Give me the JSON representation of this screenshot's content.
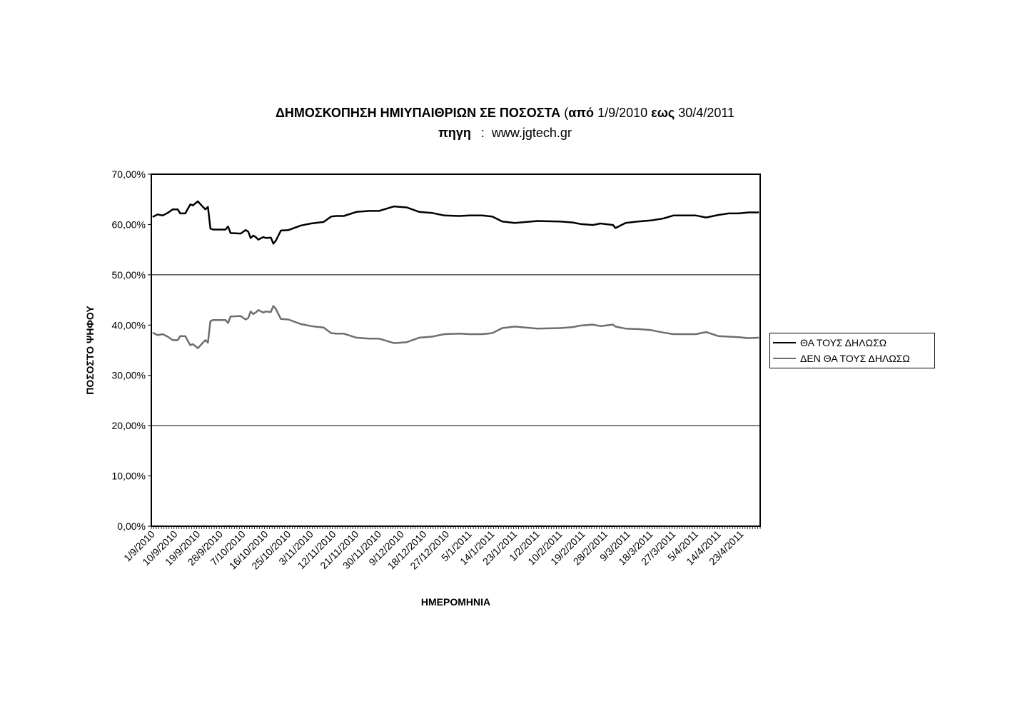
{
  "chart_data": {
    "type": "line",
    "title_bold": "ΔΗΜΟΣΚΟΠΗΣΗ ΗΜΙΥΠΑΙΘΡΙΩΝ ΣΕ ΠΟΣΟΣΤΑ",
    "title_paren_open": "(",
    "title_from_word": "από",
    "title_from_date": "1/9/2010",
    "title_to_word": "εως",
    "title_to_date": "30/4/2011",
    "subtitle_label": "πηγη",
    "subtitle_sep": ":",
    "subtitle_value": "www.jgtech.gr",
    "xlabel": "ΗΜΕΡΟΜΗΝΙΑ",
    "ylabel": "ΠΟΣΟΣΤΟ ΨΗΦΟΥ",
    "ylim": [
      0,
      70
    ],
    "y_ticks": [
      "0,00%",
      "10,00%",
      "20,00%",
      "30,00%",
      "40,00%",
      "50,00%",
      "60,00%",
      "70,00%"
    ],
    "x_tick_labels": [
      "1/9/2010",
      "10/9/2010",
      "19/9/2010",
      "28/9/2010",
      "7/10/2010",
      "16/10/2010",
      "25/10/2010",
      "3/11/2010",
      "12/11/2010",
      "21/11/2010",
      "30/11/2010",
      "9/12/2010",
      "18/12/2010",
      "27/12/2010",
      "5/1/2011",
      "14/1/2011",
      "23/1/2011",
      "1/2/2011",
      "10/2/2011",
      "19/2/2011",
      "28/2/2011",
      "9/3/2011",
      "18/3/2011",
      "27/3/2011",
      "5/4/2011",
      "14/4/2011",
      "23/4/2011"
    ],
    "x_range_dates": [
      "1/9/2010",
      "30/4/2011"
    ],
    "gridlines_at": [
      20,
      50
    ],
    "legend_position": "right",
    "series": [
      {
        "name": "ΘΑ ΤΟΥΣ ΔΗΛΩΣΩ",
        "color": "#000000",
        "points": [
          [
            "1/9/2010",
            61.5
          ],
          [
            "3/9/2010",
            62.0
          ],
          [
            "5/9/2010",
            61.8
          ],
          [
            "7/9/2010",
            62.3
          ],
          [
            "9/9/2010",
            63.0
          ],
          [
            "11/9/2010",
            63.0
          ],
          [
            "12/9/2010",
            62.2
          ],
          [
            "14/9/2010",
            62.2
          ],
          [
            "16/9/2010",
            64.0
          ],
          [
            "17/9/2010",
            63.8
          ],
          [
            "19/9/2010",
            64.6
          ],
          [
            "21/9/2010",
            63.5
          ],
          [
            "22/9/2010",
            63.0
          ],
          [
            "23/9/2010",
            63.5
          ],
          [
            "24/9/2010",
            59.2
          ],
          [
            "25/9/2010",
            59.0
          ],
          [
            "30/9/2010",
            59.0
          ],
          [
            "1/10/2010",
            59.6
          ],
          [
            "2/10/2010",
            58.3
          ],
          [
            "6/10/2010",
            58.2
          ],
          [
            "8/10/2010",
            58.9
          ],
          [
            "9/10/2010",
            58.6
          ],
          [
            "10/10/2010",
            57.3
          ],
          [
            "11/10/2010",
            57.8
          ],
          [
            "12/10/2010",
            57.5
          ],
          [
            "13/10/2010",
            57.0
          ],
          [
            "15/10/2010",
            57.5
          ],
          [
            "16/10/2010",
            57.3
          ],
          [
            "18/10/2010",
            57.4
          ],
          [
            "19/10/2010",
            56.2
          ],
          [
            "20/10/2010",
            56.8
          ],
          [
            "22/10/2010",
            58.8
          ],
          [
            "25/10/2010",
            58.9
          ],
          [
            "30/10/2010",
            59.8
          ],
          [
            "3/11/2010",
            60.2
          ],
          [
            "8/11/2010",
            60.5
          ],
          [
            "11/11/2010",
            61.6
          ],
          [
            "13/11/2010",
            61.7
          ],
          [
            "16/11/2010",
            61.7
          ],
          [
            "21/11/2010",
            62.5
          ],
          [
            "26/11/2010",
            62.7
          ],
          [
            "30/11/2010",
            62.7
          ],
          [
            "6/12/2010",
            63.6
          ],
          [
            "11/12/2010",
            63.4
          ],
          [
            "16/12/2010",
            62.5
          ],
          [
            "21/12/2010",
            62.3
          ],
          [
            "26/12/2010",
            61.8
          ],
          [
            "1/1/2011",
            61.7
          ],
          [
            "5/1/2011",
            61.8
          ],
          [
            "8/1/2011",
            61.8
          ],
          [
            "10/1/2011",
            61.8
          ],
          [
            "14/1/2011",
            61.6
          ],
          [
            "18/1/2011",
            60.6
          ],
          [
            "23/1/2011",
            60.3
          ],
          [
            "1/2/2011",
            60.7
          ],
          [
            "10/2/2011",
            60.6
          ],
          [
            "15/2/2011",
            60.4
          ],
          [
            "18/2/2011",
            60.1
          ],
          [
            "23/2/2011",
            59.9
          ],
          [
            "26/2/2011",
            60.2
          ],
          [
            "3/3/2011",
            59.9
          ],
          [
            "4/3/2011",
            59.3
          ],
          [
            "8/3/2011",
            60.3
          ],
          [
            "13/3/2011",
            60.6
          ],
          [
            "18/3/2011",
            60.8
          ],
          [
            "23/3/2011",
            61.2
          ],
          [
            "27/3/2011",
            61.8
          ],
          [
            "5/4/2011",
            61.8
          ],
          [
            "9/4/2011",
            61.4
          ],
          [
            "14/4/2011",
            61.9
          ],
          [
            "18/4/2011",
            62.2
          ],
          [
            "22/4/2011",
            62.2
          ],
          [
            "26/4/2011",
            62.4
          ],
          [
            "30/4/2011",
            62.4
          ]
        ]
      },
      {
        "name": "ΔΕΝ ΘΑ ΤΟΥΣ ΔΗΛΩΣΩ",
        "color": "#6e6e6e",
        "points": [
          [
            "1/9/2010",
            38.5
          ],
          [
            "3/9/2010",
            38.0
          ],
          [
            "5/9/2010",
            38.2
          ],
          [
            "7/9/2010",
            37.7
          ],
          [
            "9/9/2010",
            37.0
          ],
          [
            "11/9/2010",
            37.0
          ],
          [
            "12/9/2010",
            37.8
          ],
          [
            "14/9/2010",
            37.8
          ],
          [
            "16/9/2010",
            36.0
          ],
          [
            "17/9/2010",
            36.2
          ],
          [
            "19/9/2010",
            35.4
          ],
          [
            "21/9/2010",
            36.5
          ],
          [
            "22/9/2010",
            37.0
          ],
          [
            "23/9/2010",
            36.5
          ],
          [
            "24/9/2010",
            40.8
          ],
          [
            "25/9/2010",
            41.0
          ],
          [
            "30/9/2010",
            41.0
          ],
          [
            "1/10/2010",
            40.4
          ],
          [
            "2/10/2010",
            41.7
          ],
          [
            "6/10/2010",
            41.8
          ],
          [
            "8/10/2010",
            41.1
          ],
          [
            "9/10/2010",
            41.4
          ],
          [
            "10/10/2010",
            42.7
          ],
          [
            "11/10/2010",
            42.2
          ],
          [
            "12/10/2010",
            42.5
          ],
          [
            "13/10/2010",
            43.0
          ],
          [
            "15/10/2010",
            42.5
          ],
          [
            "16/10/2010",
            42.7
          ],
          [
            "18/10/2010",
            42.6
          ],
          [
            "19/10/2010",
            43.8
          ],
          [
            "20/10/2010",
            43.2
          ],
          [
            "22/10/2010",
            41.2
          ],
          [
            "25/10/2010",
            41.1
          ],
          [
            "30/10/2010",
            40.2
          ],
          [
            "3/11/2010",
            39.8
          ],
          [
            "8/11/2010",
            39.5
          ],
          [
            "11/11/2010",
            38.4
          ],
          [
            "13/11/2010",
            38.3
          ],
          [
            "16/11/2010",
            38.3
          ],
          [
            "21/11/2010",
            37.5
          ],
          [
            "26/11/2010",
            37.3
          ],
          [
            "30/11/2010",
            37.3
          ],
          [
            "6/12/2010",
            36.4
          ],
          [
            "11/12/2010",
            36.6
          ],
          [
            "16/12/2010",
            37.5
          ],
          [
            "21/12/2010",
            37.7
          ],
          [
            "26/12/2010",
            38.2
          ],
          [
            "1/1/2011",
            38.3
          ],
          [
            "5/1/2011",
            38.2
          ],
          [
            "8/1/2011",
            38.2
          ],
          [
            "10/1/2011",
            38.2
          ],
          [
            "14/1/2011",
            38.4
          ],
          [
            "18/1/2011",
            39.4
          ],
          [
            "23/1/2011",
            39.7
          ],
          [
            "1/2/2011",
            39.3
          ],
          [
            "10/2/2011",
            39.4
          ],
          [
            "15/2/2011",
            39.6
          ],
          [
            "18/2/2011",
            39.9
          ],
          [
            "23/2/2011",
            40.1
          ],
          [
            "26/2/2011",
            39.8
          ],
          [
            "3/3/2011",
            40.1
          ],
          [
            "4/3/2011",
            39.7
          ],
          [
            "8/3/2011",
            39.3
          ],
          [
            "13/3/2011",
            39.2
          ],
          [
            "18/3/2011",
            39.0
          ],
          [
            "23/3/2011",
            38.5
          ],
          [
            "27/3/2011",
            38.2
          ],
          [
            "5/4/2011",
            38.2
          ],
          [
            "9/4/2011",
            38.6
          ],
          [
            "14/4/2011",
            37.8
          ],
          [
            "18/4/2011",
            37.7
          ],
          [
            "22/4/2011",
            37.6
          ],
          [
            "26/4/2011",
            37.4
          ],
          [
            "30/4/2011",
            37.5
          ]
        ]
      }
    ]
  }
}
